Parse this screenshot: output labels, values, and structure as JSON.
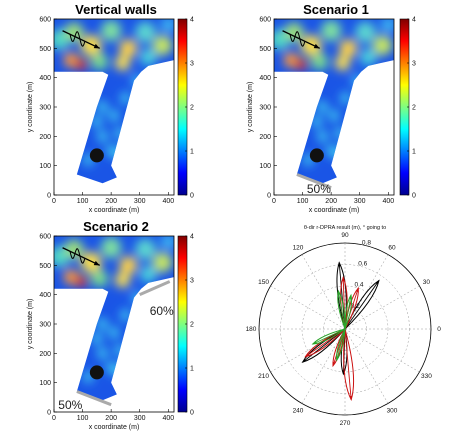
{
  "chart_data": [
    {
      "type": "heatmap",
      "title": "Vertical walls",
      "xlabel": "x coordinate (m)",
      "ylabel": "y coordinate (m)",
      "xticks": [
        "0",
        "100",
        "200",
        "300",
        "400"
      ],
      "yticks": [
        "0",
        "100",
        "200",
        "300",
        "400",
        "500",
        "600"
      ],
      "xlim": [
        0,
        420
      ],
      "ylim": [
        0,
        600
      ],
      "colorbar": {
        "ticks": [
          "0",
          "1",
          "2",
          "3",
          "4"
        ],
        "range": [
          0,
          4
        ]
      },
      "annotation": ""
    },
    {
      "type": "heatmap",
      "title": "Scenario 1",
      "xlabel": "x coordinate (m)",
      "ylabel": "y coordinate (m)",
      "xticks": [
        "0",
        "100",
        "200",
        "300",
        "400"
      ],
      "yticks": [
        "0",
        "100",
        "200",
        "300",
        "400",
        "500",
        "600"
      ],
      "xlim": [
        0,
        420
      ],
      "ylim": [
        0,
        600
      ],
      "colorbar": {
        "ticks": [
          "0",
          "1",
          "2",
          "3",
          "4"
        ],
        "range": [
          0,
          4
        ]
      },
      "annotation": "50%"
    },
    {
      "type": "heatmap",
      "title": "Scenario 2",
      "xlabel": "x coordinate (m)",
      "ylabel": "y coordinate (m)",
      "xticks": [
        "0",
        "100",
        "200",
        "300",
        "400"
      ],
      "yticks": [
        "0",
        "100",
        "200",
        "300",
        "400",
        "500",
        "600"
      ],
      "xlim": [
        0,
        420
      ],
      "ylim": [
        0,
        600
      ],
      "colorbar": {
        "ticks": [
          "0",
          "1",
          "2",
          "3",
          "4"
        ],
        "range": [
          0,
          4
        ]
      },
      "annotations": [
        "60%",
        "50%"
      ]
    },
    {
      "type": "polar",
      "title": "θ-dir r-DPRA result (m), ° going to",
      "angle_ticks": [
        "0",
        "30",
        "60",
        "90",
        "120",
        "150",
        "180",
        "210",
        "240",
        "270",
        "300",
        "330"
      ],
      "radial_ticks": [
        "0.2",
        "0.4",
        "0.6",
        "0.8"
      ],
      "rmax": 0.8,
      "series": [
        {
          "color": "#000000",
          "lobes": [
            {
              "angle": 95,
              "r": 0.62
            },
            {
              "angle": 55,
              "r": 0.55
            },
            {
              "angle": 218,
              "r": 0.5
            },
            {
              "angle": 268,
              "r": 0.42
            }
          ]
        },
        {
          "color": "#cc1111",
          "lobes": [
            {
              "angle": 92,
              "r": 0.48
            },
            {
              "angle": 72,
              "r": 0.4
            },
            {
              "angle": 215,
              "r": 0.45
            },
            {
              "angle": 275,
              "r": 0.66
            },
            {
              "angle": 252,
              "r": 0.36
            }
          ]
        },
        {
          "color": "#2aa52a",
          "lobes": [
            {
              "angle": 100,
              "r": 0.36
            },
            {
              "angle": 80,
              "r": 0.32
            },
            {
              "angle": 205,
              "r": 0.33
            },
            {
              "angle": 255,
              "r": 0.3
            }
          ]
        }
      ]
    }
  ]
}
